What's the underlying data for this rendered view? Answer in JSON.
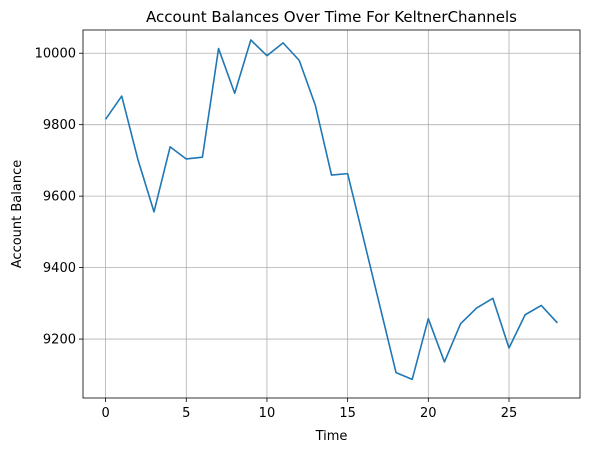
{
  "chart_data": {
    "type": "line",
    "title": "Account Balances Over Time For KeltnerChannels",
    "xlabel": "Time",
    "ylabel": "Account Balance",
    "xlim": [
      -1.4,
      29.4
    ],
    "ylim": [
      9035,
      10065
    ],
    "x_ticks": [
      0,
      5,
      10,
      15,
      20,
      25
    ],
    "y_ticks": [
      9200,
      9400,
      9600,
      9800,
      10000
    ],
    "grid": true,
    "series": [
      {
        "color": "#1f77b4",
        "x": [
          0,
          1,
          2,
          3,
          4,
          5,
          6,
          7,
          8,
          9,
          10,
          11,
          12,
          13,
          14,
          15,
          16,
          17,
          18,
          19,
          20,
          21,
          22,
          23,
          24,
          25,
          26,
          27,
          28
        ],
        "y": [
          9815,
          9880,
          9703,
          9556,
          9738,
          9704,
          9709,
          10013,
          9888,
          10037,
          9993,
          10029,
          9980,
          9854,
          9659,
          9663,
          9478,
          9292,
          9106,
          9087,
          9257,
          9136,
          9243,
          9287,
          9314,
          9175,
          9268,
          9294,
          9245
        ]
      }
    ]
  }
}
